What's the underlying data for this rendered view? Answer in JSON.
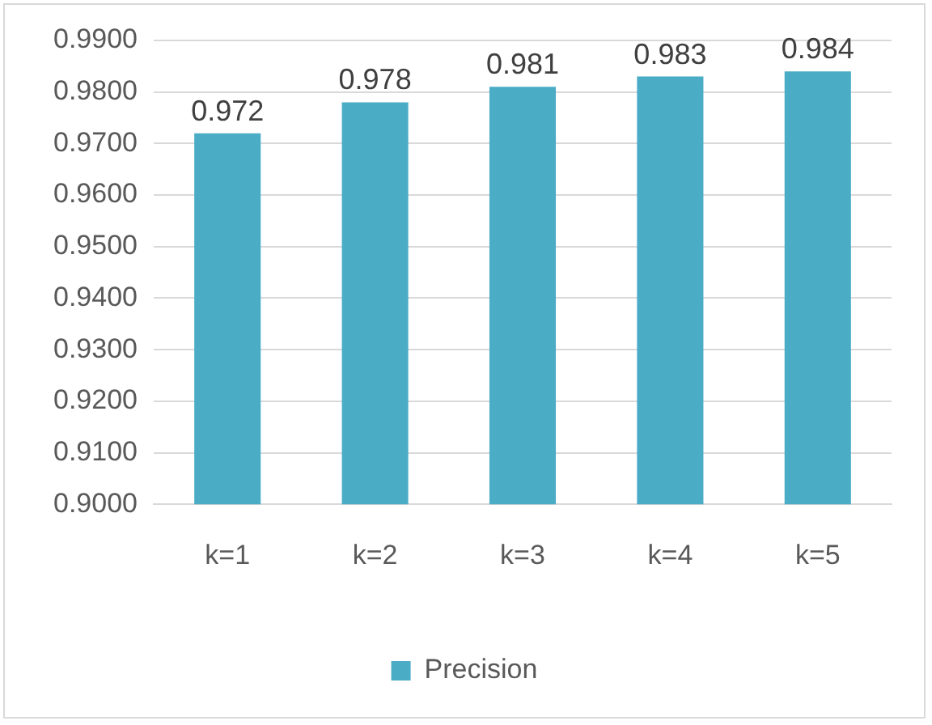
{
  "chart_data": {
    "type": "bar",
    "categories": [
      "k=1",
      "k=2",
      "k=3",
      "k=4",
      "k=5"
    ],
    "series": [
      {
        "name": "Precision",
        "color": "#4bacc6",
        "values": [
          0.972,
          0.978,
          0.981,
          0.983,
          0.984
        ]
      }
    ],
    "ylim": [
      0.9,
      0.99
    ],
    "yticks": [
      {
        "value": 0.9,
        "label": "0.9000"
      },
      {
        "value": 0.91,
        "label": "0.9100"
      },
      {
        "value": 0.92,
        "label": "0.9200"
      },
      {
        "value": 0.93,
        "label": "0.9300"
      },
      {
        "value": 0.94,
        "label": "0.9400"
      },
      {
        "value": 0.95,
        "label": "0.9500"
      },
      {
        "value": 0.96,
        "label": "0.9600"
      },
      {
        "value": 0.97,
        "label": "0.9700"
      },
      {
        "value": 0.98,
        "label": "0.9800"
      },
      {
        "value": 0.99,
        "label": "0.9900"
      }
    ],
    "grid": "y",
    "legend": "bottom",
    "data_labels": true
  }
}
